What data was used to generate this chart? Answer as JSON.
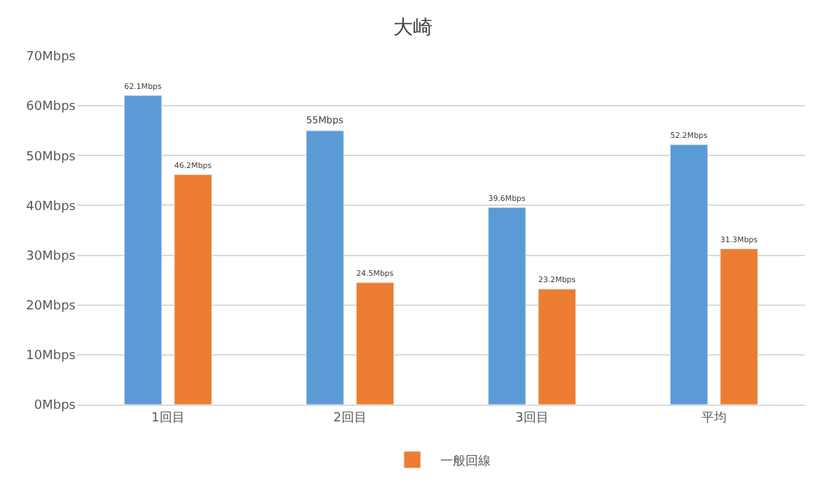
{
  "chart_data": {
    "type": "bar",
    "title": "大崎",
    "categories": [
      "1回目",
      "2回目",
      "3回目",
      "平均"
    ],
    "series": [
      {
        "color": "#5b9bd5",
        "values": [
          62.1,
          55,
          39.6,
          52.2
        ],
        "value_labels": [
          "62.1Mbps",
          "55Mbps",
          "39.6Mbps",
          "52.2Mbps"
        ]
      },
      {
        "name": "一般回線",
        "color": "#ed7d31",
        "values": [
          46.2,
          24.5,
          23.2,
          31.3
        ],
        "value_labels": [
          "46.2Mbps",
          "24.5Mbps",
          "23.2Mbps",
          "31.3Mbps"
        ]
      }
    ],
    "ylim": [
      0,
      70
    ],
    "yticks": [
      {
        "value": 0,
        "label": "0Mbps"
      },
      {
        "value": 10,
        "label": "10Mbps"
      },
      {
        "value": 20,
        "label": "20Mbps"
      },
      {
        "value": 30,
        "label": "30Mbps"
      },
      {
        "value": 40,
        "label": "40Mbps"
      },
      {
        "value": 50,
        "label": "50Mbps"
      },
      {
        "value": 60,
        "label": "60Mbps"
      },
      {
        "value": 70,
        "label": "70Mbps"
      }
    ],
    "grid": "y",
    "legend": "bottom"
  }
}
